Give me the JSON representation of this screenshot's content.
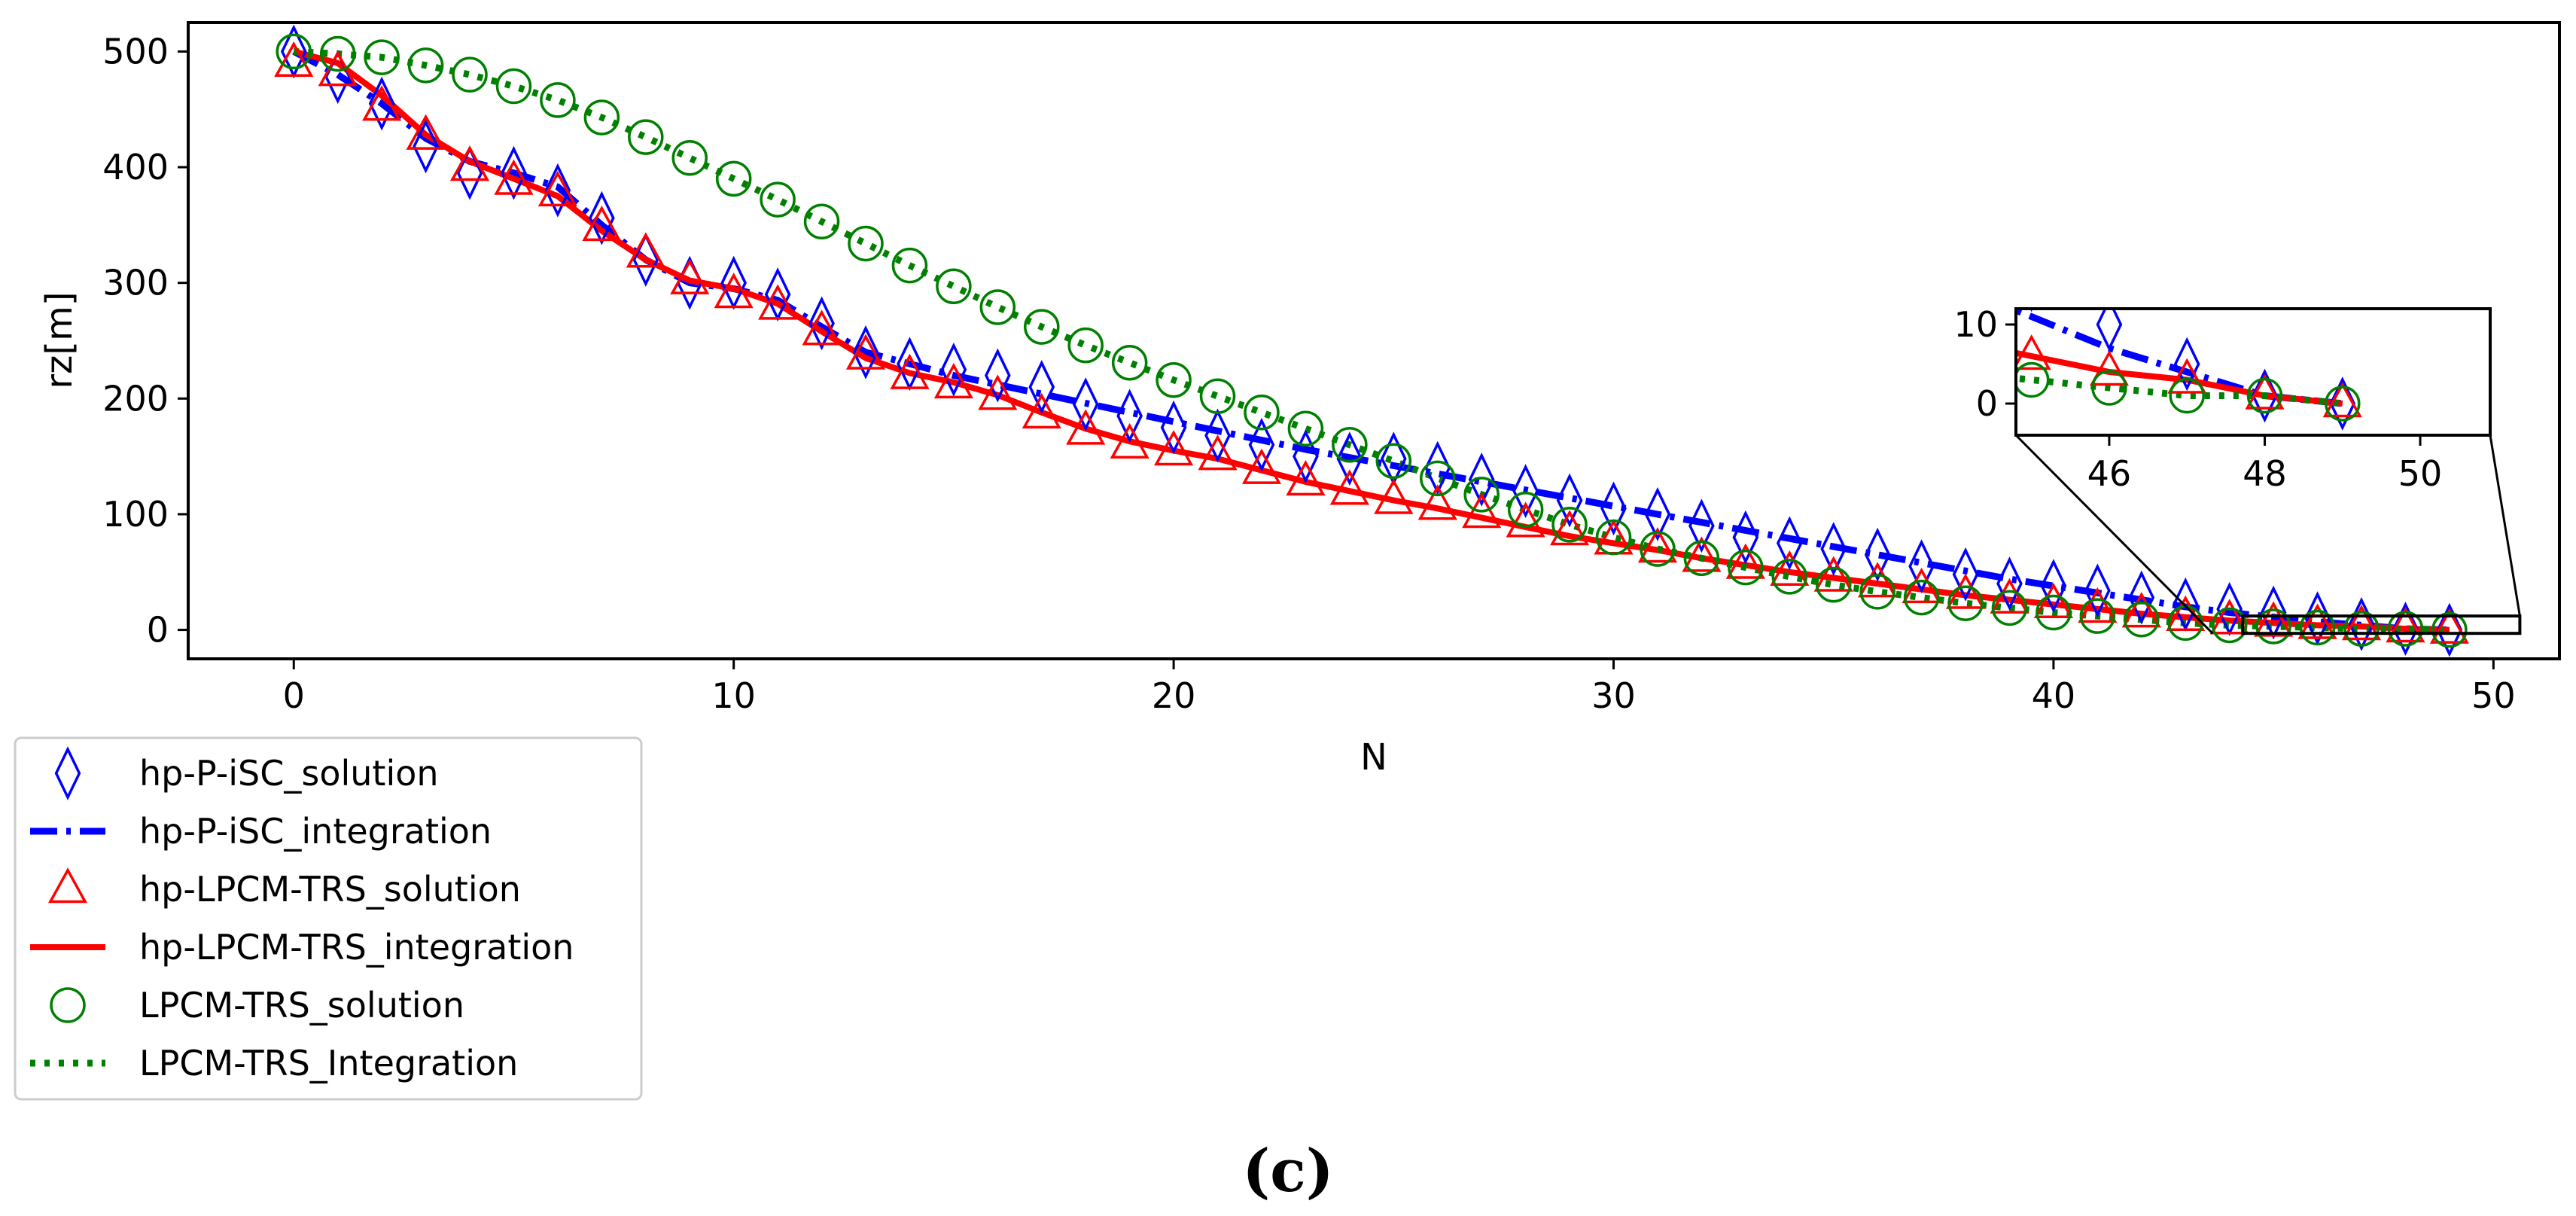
{
  "chart_data": {
    "type": "line",
    "xlabel": "N",
    "ylabel": "rz[m]",
    "xlim": [
      -2.4,
      51.5
    ],
    "ylim": [
      -25,
      525
    ],
    "xticks": [
      0,
      10,
      20,
      30,
      40,
      50
    ],
    "yticks": [
      0,
      100,
      200,
      300,
      400,
      500
    ],
    "x": [
      0,
      1,
      2,
      3,
      4,
      5,
      6,
      7,
      8,
      9,
      10,
      11,
      12,
      13,
      14,
      15,
      16,
      17,
      18,
      19,
      20,
      21,
      22,
      23,
      24,
      25,
      26,
      27,
      28,
      29,
      30,
      31,
      32,
      33,
      34,
      35,
      36,
      37,
      38,
      39,
      40,
      41,
      42,
      43,
      44,
      45,
      46,
      47,
      48,
      49
    ],
    "series": [
      {
        "name": "hp-P-iSC_solution",
        "kind": "marker",
        "marker": "diamond",
        "color": "#0000ff",
        "values": [
          500,
          478,
          455,
          418,
          395,
          395,
          380,
          356,
          320,
          300,
          300,
          290,
          265,
          240,
          230,
          225,
          220,
          210,
          195,
          185,
          175,
          168,
          160,
          150,
          148,
          148,
          140,
          130,
          120,
          112,
          105,
          100,
          90,
          80,
          75,
          70,
          65,
          55,
          48,
          40,
          38,
          34,
          28,
          22,
          18,
          15,
          10,
          5,
          1,
          0
        ]
      },
      {
        "name": "hp-P-iSC_integration",
        "kind": "line",
        "dash": "dashdot",
        "color": "#0000ff",
        "values": [
          500,
          480,
          455,
          425,
          405,
          395,
          383,
          350,
          320,
          300,
          295,
          285,
          262,
          240,
          230,
          220,
          212,
          204,
          196,
          188,
          180,
          172,
          164,
          156,
          149,
          142,
          135,
          128,
          121,
          114,
          107,
          100,
          93,
          86,
          79,
          72,
          65,
          58,
          51,
          44,
          38,
          32,
          26,
          20,
          15,
          11,
          7,
          4,
          1,
          0
        ]
      },
      {
        "name": "hp-LPCM-TRS_solution",
        "kind": "marker",
        "marker": "triangle",
        "color": "#ff0000",
        "values": [
          490,
          482,
          452,
          427,
          400,
          388,
          378,
          348,
          325,
          302,
          290,
          280,
          258,
          237,
          220,
          212,
          202,
          186,
          172,
          160,
          154,
          150,
          138,
          128,
          120,
          112,
          107,
          100,
          92,
          85,
          77,
          70,
          62,
          56,
          50,
          45,
          40,
          35,
          30,
          26,
          22,
          18,
          14,
          11,
          8,
          6,
          4,
          3,
          1,
          0
        ]
      },
      {
        "name": "hp-LPCM-TRS_integration",
        "kind": "line",
        "dash": "solid",
        "color": "#ff0000",
        "values": [
          500,
          490,
          462,
          428,
          405,
          390,
          375,
          345,
          320,
          302,
          295,
          282,
          258,
          235,
          222,
          214,
          203,
          188,
          174,
          163,
          155,
          148,
          138,
          128,
          120,
          112,
          105,
          97,
          89,
          81,
          75,
          69,
          62,
          56,
          50,
          45,
          40,
          35,
          30,
          26,
          22,
          18,
          14,
          11,
          8,
          6,
          4,
          3,
          1,
          0
        ]
      },
      {
        "name": "LPCM-TRS_solution",
        "kind": "marker",
        "marker": "circle",
        "color": "#008000",
        "values": [
          500,
          498,
          495,
          488,
          480,
          470,
          458,
          443,
          426,
          408,
          390,
          372,
          353,
          334,
          315,
          297,
          279,
          262,
          246,
          231,
          216,
          202,
          188,
          174,
          160,
          146,
          131,
          117,
          104,
          91,
          80,
          70,
          62,
          54,
          46,
          39,
          33,
          28,
          23,
          19,
          15,
          12,
          9,
          6,
          4,
          3,
          2,
          1,
          1,
          0
        ]
      },
      {
        "name": "LPCM-TRS_Integration",
        "kind": "line",
        "dash": "dotted",
        "color": "#008000",
        "values": [
          500,
          498,
          495,
          488,
          480,
          470,
          458,
          443,
          426,
          408,
          390,
          372,
          353,
          334,
          315,
          297,
          279,
          262,
          246,
          231,
          216,
          202,
          188,
          174,
          160,
          146,
          131,
          117,
          104,
          91,
          80,
          70,
          62,
          54,
          46,
          39,
          33,
          28,
          23,
          19,
          15,
          12,
          9,
          6,
          4,
          3,
          2,
          1,
          1,
          0
        ]
      }
    ],
    "inset": {
      "xlim": [
        44.8,
        50.9
      ],
      "ylim": [
        -4,
        12
      ],
      "xticks": [
        46,
        48,
        50
      ],
      "yticks": [
        0,
        10
      ],
      "zoom_region": {
        "x": [
          44.3,
          50.6
        ],
        "y": [
          -3,
          12
        ]
      }
    },
    "legend": {
      "location": "outside-lower-left",
      "entries": [
        {
          "label": "hp-P-iSC_solution"
        },
        {
          "label": "hp-P-iSC_integration"
        },
        {
          "label": "hp-LPCM-TRS_solution"
        },
        {
          "label": "hp-LPCM-TRS_integration"
        },
        {
          "label": "LPCM-TRS_solution"
        },
        {
          "label": "LPCM-TRS_Integration"
        }
      ]
    }
  },
  "caption": "(c)"
}
